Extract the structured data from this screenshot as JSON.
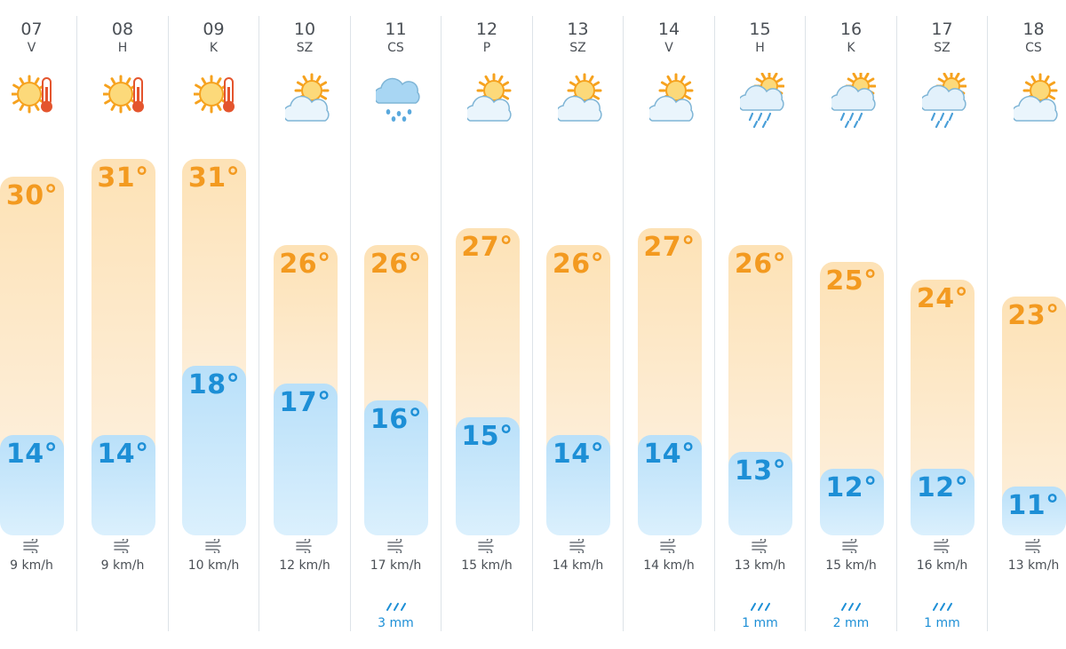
{
  "days": [
    {
      "date": "07",
      "day": "V",
      "icon": "hot-sun-thermometer-icon",
      "high": "30°",
      "high_value": 30,
      "low": "14°",
      "low_value": 14,
      "wind": "9 km/h",
      "rain": null
    },
    {
      "date": "08",
      "day": "H",
      "icon": "hot-sun-thermometer-icon",
      "high": "31°",
      "high_value": 31,
      "low": "14°",
      "low_value": 14,
      "wind": "9 km/h",
      "rain": null
    },
    {
      "date": "09",
      "day": "K",
      "icon": "hot-sun-thermometer-icon",
      "high": "31°",
      "high_value": 31,
      "low": "18°",
      "low_value": 18,
      "wind": "10 km/h",
      "rain": null
    },
    {
      "date": "10",
      "day": "SZ",
      "icon": "partly-cloudy-icon",
      "high": "26°",
      "high_value": 26,
      "low": "17°",
      "low_value": 17,
      "wind": "12 km/h",
      "rain": null
    },
    {
      "date": "11",
      "day": "CS",
      "icon": "rain-cloud-icon",
      "high": "26°",
      "high_value": 26,
      "low": "16°",
      "low_value": 16,
      "wind": "17 km/h",
      "rain": "3 mm"
    },
    {
      "date": "12",
      "day": "P",
      "icon": "partly-cloudy-icon",
      "high": "27°",
      "high_value": 27,
      "low": "15°",
      "low_value": 15,
      "wind": "15 km/h",
      "rain": null
    },
    {
      "date": "13",
      "day": "SZ",
      "icon": "partly-cloudy-icon",
      "high": "26°",
      "high_value": 26,
      "low": "14°",
      "low_value": 14,
      "wind": "14 km/h",
      "rain": null
    },
    {
      "date": "14",
      "day": "V",
      "icon": "partly-cloudy-icon",
      "high": "27°",
      "high_value": 27,
      "low": "14°",
      "low_value": 14,
      "wind": "14 km/h",
      "rain": null
    },
    {
      "date": "15",
      "day": "H",
      "icon": "sun-rain-cloud-icon",
      "high": "26°",
      "high_value": 26,
      "low": "13°",
      "low_value": 13,
      "wind": "13 km/h",
      "rain": "1 mm"
    },
    {
      "date": "16",
      "day": "K",
      "icon": "sun-rain-cloud-icon",
      "high": "25°",
      "high_value": 25,
      "low": "12°",
      "low_value": 12,
      "wind": "15 km/h",
      "rain": "2 mm"
    },
    {
      "date": "17",
      "day": "SZ",
      "icon": "sun-rain-cloud-icon",
      "high": "24°",
      "high_value": 24,
      "low": "12°",
      "low_value": 12,
      "wind": "16 km/h",
      "rain": "1 mm"
    },
    {
      "date": "18",
      "day": "CS",
      "icon": "partly-cloudy-icon",
      "high": "23°",
      "high_value": 23,
      "low": "11°",
      "low_value": 11,
      "wind": "13 km/h",
      "rain": null
    }
  ],
  "colors": {
    "high": "#f39a20",
    "low": "#1d8fd6",
    "text": "#4a4f55"
  }
}
